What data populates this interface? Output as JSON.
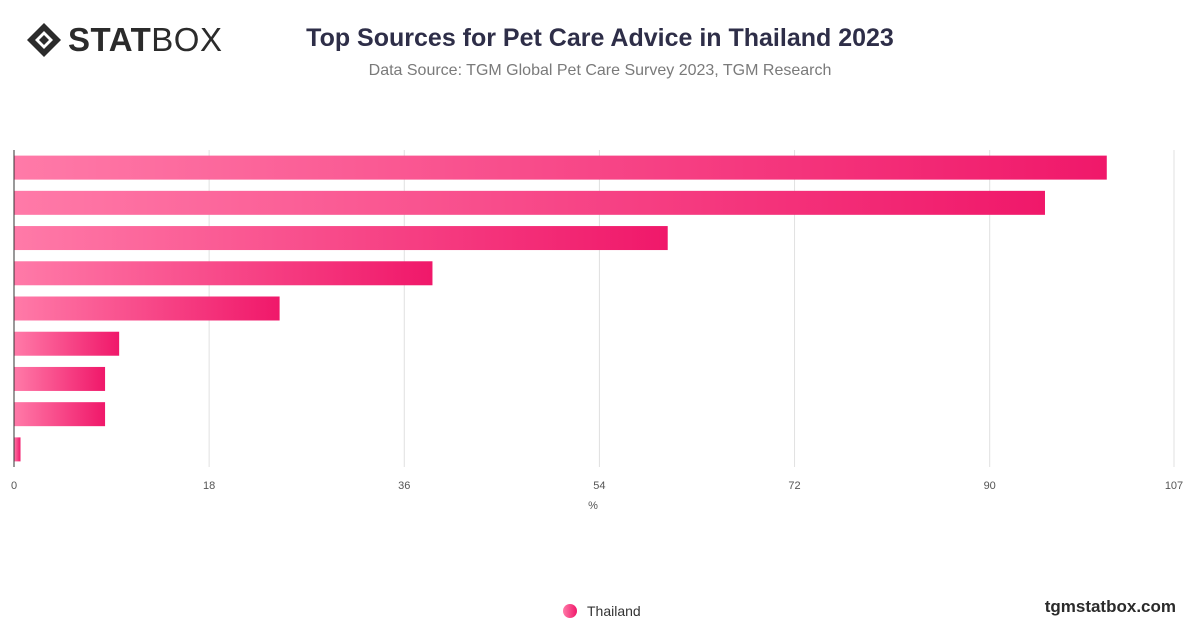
{
  "brand": {
    "logo_bold": "STAT",
    "logo_light": "BOX",
    "website": "tgmstatbox.com"
  },
  "header": {
    "title": "Top Sources for Pet Care Advice in Thailand 2023",
    "subtitle": "Data Source: TGM Global Pet Care Survey 2023, TGM Research"
  },
  "legend": {
    "items": [
      {
        "label": "Thailand"
      }
    ]
  },
  "colors": {
    "bar_start": "#ff7aa8",
    "bar_end": "#f0186a",
    "grid": "#e0e0e0",
    "axis": "#333333",
    "text": "#555555"
  },
  "chart_data": {
    "type": "bar",
    "orientation": "horizontal",
    "categories": [
      "",
      "",
      "",
      "",
      "",
      "",
      "",
      "",
      ""
    ],
    "series": [
      {
        "name": "Thailand",
        "values": [
          100.8,
          95.1,
          60.3,
          38.6,
          24.5,
          9.7,
          8.4,
          8.4,
          0.6
        ]
      }
    ],
    "xlabel": "%",
    "ylabel": "",
    "xlim": [
      0,
      107
    ],
    "xticks": [
      0,
      18,
      36,
      54,
      72,
      90,
      107
    ],
    "grid": true,
    "legend_position": "bottom-center"
  }
}
